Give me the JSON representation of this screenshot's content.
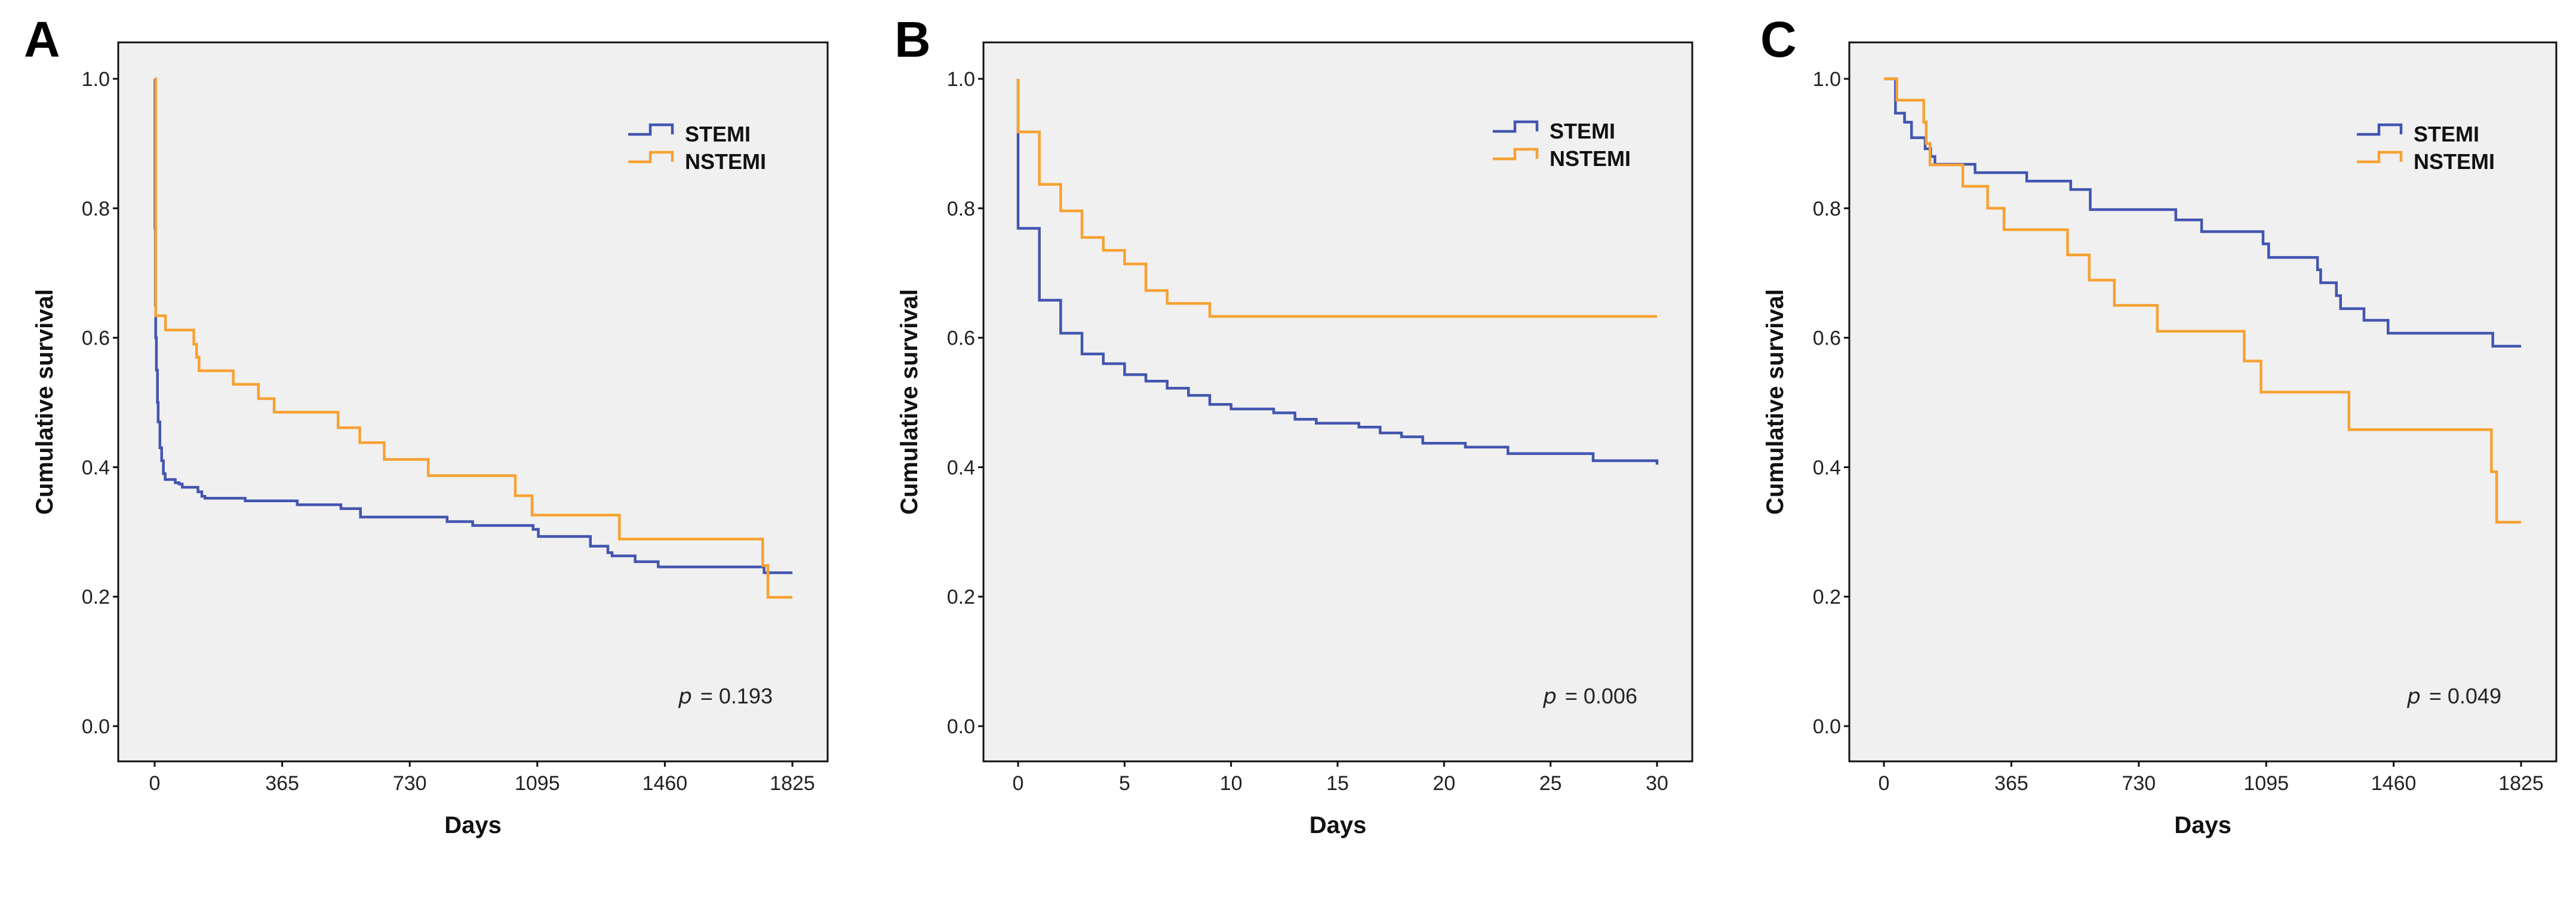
{
  "colors": {
    "STEMI": "#4255b0",
    "NSTEMI": "#f7a132",
    "plot_bg": "#f0f0f0"
  },
  "chart_data": [
    {
      "panel": "A",
      "type": "line",
      "step": true,
      "xlabel": "Days",
      "ylabel": "Cumulative survival",
      "xlim": [
        0,
        1825
      ],
      "ylim": [
        0,
        1
      ],
      "xticks": [
        0,
        365,
        730,
        1095,
        1460,
        1825
      ],
      "yticks": [
        "0.0",
        "0.2",
        "0.4",
        "0.6",
        "0.8",
        "1.0"
      ],
      "legend": [
        "STEMI",
        "NSTEMI"
      ],
      "legend_position": "top-right",
      "annotation": {
        "p": "p",
        "text": "= 0.193"
      },
      "series": [
        {
          "name": "STEMI",
          "points": [
            [
              0,
              1.0
            ],
            [
              1,
              0.77
            ],
            [
              2,
              0.65
            ],
            [
              3,
              0.6
            ],
            [
              5,
              0.55
            ],
            [
              8,
              0.5
            ],
            [
              10,
              0.47
            ],
            [
              15,
              0.43
            ],
            [
              20,
              0.41
            ],
            [
              25,
              0.39
            ],
            [
              30,
              0.381
            ],
            [
              59,
              0.376
            ],
            [
              70,
              0.374
            ],
            [
              79,
              0.369
            ],
            [
              124,
              0.362
            ],
            [
              135,
              0.355
            ],
            [
              144,
              0.352
            ],
            [
              259,
              0.348
            ],
            [
              408,
              0.342
            ],
            [
              533,
              0.336
            ],
            [
              589,
              0.323
            ],
            [
              837,
              0.316
            ],
            [
              910,
              0.31
            ],
            [
              1083,
              0.304
            ],
            [
              1098,
              0.293
            ],
            [
              1247,
              0.278
            ],
            [
              1297,
              0.268
            ],
            [
              1309,
              0.263
            ],
            [
              1375,
              0.254
            ],
            [
              1441,
              0.246
            ],
            [
              1744,
              0.237
            ],
            [
              1825,
              0.237
            ]
          ]
        },
        {
          "name": "NSTEMI",
          "points": [
            [
              0,
              1.0
            ],
            [
              3,
              0.634
            ],
            [
              31,
              0.612
            ],
            [
              112,
              0.59
            ],
            [
              120,
              0.57
            ],
            [
              127,
              0.549
            ],
            [
              225,
              0.528
            ],
            [
              297,
              0.506
            ],
            [
              342,
              0.485
            ],
            [
              525,
              0.461
            ],
            [
              587,
              0.438
            ],
            [
              657,
              0.412
            ],
            [
              783,
              0.387
            ],
            [
              1032,
              0.356
            ],
            [
              1080,
              0.326
            ],
            [
              1330,
              0.289
            ],
            [
              1740,
              0.248
            ],
            [
              1755,
              0.199
            ],
            [
              1825,
              0.199
            ]
          ]
        }
      ]
    },
    {
      "panel": "B",
      "type": "line",
      "step": true,
      "xlabel": "Days",
      "ylabel": "Cumulative survival",
      "xlim": [
        0,
        30
      ],
      "ylim": [
        0,
        1
      ],
      "xticks": [
        0,
        5,
        10,
        15,
        20,
        25,
        30
      ],
      "yticks": [
        "0.0",
        "0.2",
        "0.4",
        "0.6",
        "0.8",
        "1.0"
      ],
      "legend": [
        "STEMI",
        "NSTEMI"
      ],
      "legend_position": "top-right",
      "annotation": {
        "p": "p",
        "text": "= 0.006"
      },
      "series": [
        {
          "name": "STEMI",
          "points": [
            [
              0,
              1.0
            ],
            [
              0,
              0.769
            ],
            [
              1,
              0.658
            ],
            [
              2,
              0.607
            ],
            [
              3,
              0.575
            ],
            [
              4,
              0.56
            ],
            [
              5,
              0.543
            ],
            [
              6,
              0.533
            ],
            [
              7,
              0.522
            ],
            [
              8,
              0.511
            ],
            [
              9,
              0.497
            ],
            [
              10,
              0.49
            ],
            [
              12,
              0.484
            ],
            [
              13,
              0.474
            ],
            [
              14,
              0.468
            ],
            [
              16,
              0.462
            ],
            [
              17,
              0.453
            ],
            [
              18,
              0.447
            ],
            [
              19,
              0.437
            ],
            [
              21,
              0.431
            ],
            [
              23,
              0.421
            ],
            [
              27,
              0.41
            ],
            [
              30,
              0.404
            ]
          ]
        },
        {
          "name": "NSTEMI",
          "points": [
            [
              0,
              1.0
            ],
            [
              0,
              0.918
            ],
            [
              1,
              0.837
            ],
            [
              2,
              0.796
            ],
            [
              3,
              0.755
            ],
            [
              4,
              0.735
            ],
            [
              5,
              0.714
            ],
            [
              6,
              0.673
            ],
            [
              7,
              0.653
            ],
            [
              9,
              0.633
            ],
            [
              30,
              0.633
            ]
          ]
        }
      ]
    },
    {
      "panel": "C",
      "type": "line",
      "step": true,
      "xlabel": "Days",
      "ylabel": "Cumulative survival",
      "xlim": [
        0,
        1825
      ],
      "ylim": [
        0,
        1
      ],
      "xticks": [
        0,
        365,
        730,
        1095,
        1460,
        1825
      ],
      "yticks": [
        "0.0",
        "0.2",
        "0.4",
        "0.6",
        "0.8",
        "1.0"
      ],
      "legend": [
        "STEMI",
        "NSTEMI"
      ],
      "legend_position": "top-right",
      "annotation": {
        "p": "p",
        "text": "= 0.049"
      },
      "series": [
        {
          "name": "STEMI",
          "points": [
            [
              0,
              1.0
            ],
            [
              33,
              0.947
            ],
            [
              59,
              0.933
            ],
            [
              79,
              0.909
            ],
            [
              118,
              0.892
            ],
            [
              134,
              0.88
            ],
            [
              146,
              0.868
            ],
            [
              261,
              0.855
            ],
            [
              409,
              0.842
            ],
            [
              535,
              0.829
            ],
            [
              591,
              0.798
            ],
            [
              836,
              0.782
            ],
            [
              910,
              0.764
            ],
            [
              1086,
              0.745
            ],
            [
              1102,
              0.724
            ],
            [
              1242,
              0.705
            ],
            [
              1251,
              0.685
            ],
            [
              1296,
              0.665
            ],
            [
              1308,
              0.645
            ],
            [
              1375,
              0.627
            ],
            [
              1444,
              0.607
            ],
            [
              1744,
              0.587
            ],
            [
              1825,
              0.587
            ]
          ]
        },
        {
          "name": "NSTEMI",
          "points": [
            [
              0,
              1.0
            ],
            [
              37,
              0.967
            ],
            [
              114,
              0.933
            ],
            [
              121,
              0.9
            ],
            [
              132,
              0.867
            ],
            [
              226,
              0.834
            ],
            [
              297,
              0.8
            ],
            [
              344,
              0.767
            ],
            [
              526,
              0.728
            ],
            [
              588,
              0.689
            ],
            [
              660,
              0.65
            ],
            [
              783,
              0.61
            ],
            [
              1032,
              0.564
            ],
            [
              1080,
              0.516
            ],
            [
              1332,
              0.458
            ],
            [
              1740,
              0.393
            ],
            [
              1755,
              0.315
            ],
            [
              1825,
              0.315
            ]
          ]
        }
      ]
    }
  ]
}
